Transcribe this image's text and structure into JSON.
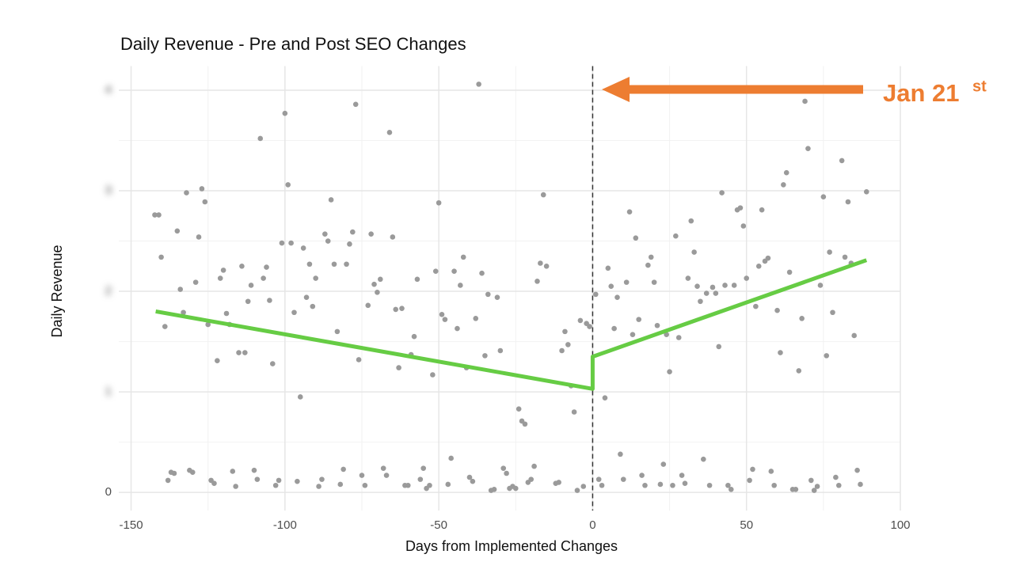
{
  "chart_data": {
    "type": "scatter",
    "title": "Daily Revenue - Pre and Post SEO Changes",
    "x_label": "Days from Implemented Changes",
    "y_label": "Daily Revenue",
    "xlim": [
      -154,
      100
    ],
    "ylim": [
      -0.18,
      4.24
    ],
    "xticks": [
      -150,
      -100,
      -50,
      0,
      50,
      100
    ],
    "yticks": [
      0,
      1,
      2,
      3,
      4
    ],
    "xminor": [
      -125,
      -75,
      -25,
      25,
      75
    ],
    "yminor": [
      0.5,
      1.5,
      2.5,
      3.5
    ],
    "grid": true,
    "point_color": "#9a9a9a",
    "x": [
      -142.3,
      -141,
      -140.2,
      -139,
      -138,
      -137,
      -136,
      -135,
      -134,
      -133,
      -132,
      -131,
      -130,
      -129,
      -128,
      -127,
      -126,
      -125,
      -124,
      -123,
      -122,
      -121,
      -120,
      -119,
      -118,
      -117,
      -116,
      -115,
      -114,
      -113,
      -112,
      -111,
      -110,
      -109,
      -108,
      -107,
      -106,
      -105,
      -104,
      -103,
      -102,
      -101,
      -100,
      -99,
      -98,
      -97,
      -96,
      -95,
      -94,
      -93,
      -92,
      -91,
      -90,
      -89,
      -88,
      -87,
      -86,
      -85,
      -84,
      -83,
      -82,
      -81,
      -80,
      -79,
      -78,
      -77,
      -76,
      -75,
      -74,
      -73,
      -72,
      -71,
      -70,
      -69,
      -68,
      -67,
      -66,
      -65,
      -64,
      -63,
      -62,
      -61,
      -60,
      -59,
      -58,
      -57,
      -56,
      -55,
      -54,
      -53,
      -52,
      -51,
      -50,
      -49,
      -48,
      -47,
      -46,
      -45,
      -44,
      -43,
      -42,
      -41,
      -40,
      -39,
      -38,
      -37,
      -36,
      -35,
      -34,
      -33,
      -32,
      -31,
      -30,
      -29,
      -28,
      -27,
      -26,
      -25,
      -24,
      -23,
      -22,
      -21,
      -20,
      -19,
      -18,
      -17,
      -16,
      -15,
      -12,
      -11,
      -10,
      -9,
      -8,
      -7,
      -6,
      -5,
      -4,
      -3,
      -2,
      -1,
      1,
      2,
      3,
      4,
      5,
      6,
      7,
      8,
      9,
      10,
      11,
      12,
      13,
      14,
      15,
      16,
      17,
      18,
      19,
      20,
      21,
      22,
      23,
      24,
      25,
      26,
      27,
      28,
      29,
      30,
      31,
      32,
      33,
      34,
      35,
      36,
      37,
      38,
      39,
      40,
      41,
      42,
      43,
      44,
      45,
      46,
      47,
      48,
      49,
      50,
      51,
      52,
      53,
      54,
      55,
      56,
      57,
      58,
      59,
      60,
      61,
      62,
      63,
      64,
      65,
      66,
      67,
      68,
      69,
      70,
      71,
      72,
      73,
      74,
      75,
      76,
      77,
      78,
      79,
      80,
      81,
      82,
      83,
      84,
      85,
      86,
      87,
      89
    ],
    "y": [
      2.76,
      2.76,
      2.34,
      1.65,
      0.12,
      0.2,
      0.19,
      2.6,
      2.02,
      1.79,
      2.98,
      0.22,
      0.2,
      2.09,
      2.54,
      3.02,
      2.89,
      1.67,
      0.12,
      0.09,
      1.31,
      2.13,
      2.21,
      1.78,
      1.67,
      0.21,
      0.06,
      1.39,
      2.25,
      1.39,
      1.9,
      2.06,
      0.22,
      0.13,
      3.52,
      2.13,
      2.24,
      1.91,
      1.28,
      0.07,
      0.12,
      2.48,
      3.77,
      3.06,
      2.48,
      1.79,
      0.11,
      0.95,
      2.43,
      1.94,
      2.27,
      1.85,
      2.13,
      0.06,
      0.13,
      2.57,
      2.5,
      2.91,
      2.27,
      1.6,
      0.08,
      0.23,
      2.27,
      2.47,
      2.59,
      3.86,
      1.32,
      0.17,
      0.07,
      1.86,
      2.57,
      2.07,
      1.99,
      2.12,
      0.24,
      0.17,
      3.58,
      2.54,
      1.82,
      1.24,
      1.83,
      0.07,
      0.07,
      1.37,
      1.55,
      2.12,
      0.13,
      0.24,
      0.04,
      0.07,
      1.17,
      2.2,
      2.88,
      1.77,
      1.72,
      0.08,
      0.34,
      2.2,
      1.63,
      2.06,
      2.34,
      1.24,
      0.15,
      0.11,
      1.73,
      4.06,
      2.18,
      1.36,
      1.97,
      0.02,
      0.03,
      1.94,
      1.41,
      0.24,
      0.19,
      0.04,
      0.06,
      0.04,
      0.83,
      0.71,
      0.68,
      0.1,
      0.13,
      0.26,
      2.1,
      2.28,
      2.96,
      2.25,
      0.09,
      0.1,
      1.41,
      1.6,
      1.47,
      1.06,
      0.8,
      0.02,
      1.71,
      0.06,
      1.68,
      1.65,
      1.97,
      0.13,
      0.07,
      0.94,
      2.23,
      2.05,
      1.63,
      1.94,
      0.38,
      0.13,
      2.09,
      2.79,
      1.57,
      2.53,
      1.72,
      0.17,
      0.07,
      2.26,
      2.34,
      2.09,
      1.66,
      0.08,
      0.28,
      1.57,
      1.2,
      0.07,
      2.55,
      1.54,
      0.17,
      0.09,
      2.13,
      2.7,
      2.39,
      2.05,
      1.9,
      0.33,
      1.98,
      0.07,
      2.04,
      1.98,
      1.45,
      2.98,
      2.06,
      0.07,
      0.03,
      2.06,
      2.81,
      2.83,
      2.65,
      2.13,
      0.12,
      0.23,
      1.85,
      2.25,
      2.81,
      2.3,
      2.33,
      0.21,
      0.07,
      1.81,
      1.39,
      3.06,
      3.18,
      2.19,
      0.03,
      0.03,
      1.21,
      1.73,
      3.89,
      3.42,
      0.12,
      0.02,
      0.06,
      2.06,
      2.94,
      1.36,
      2.39,
      1.79,
      0.15,
      0.07,
      3.3,
      2.34,
      2.89,
      2.28,
      1.56,
      0.22,
      0.08,
      2.99
    ],
    "trend": {
      "color": "#66cc44",
      "x": [
        -142,
        0,
        0,
        89
      ],
      "y": [
        1.8,
        1.03,
        1.35,
        2.31
      ]
    },
    "marker_x": 0,
    "annotation": {
      "text": "Jan 21",
      "suffix": "st",
      "color": "#ed7d31"
    }
  }
}
